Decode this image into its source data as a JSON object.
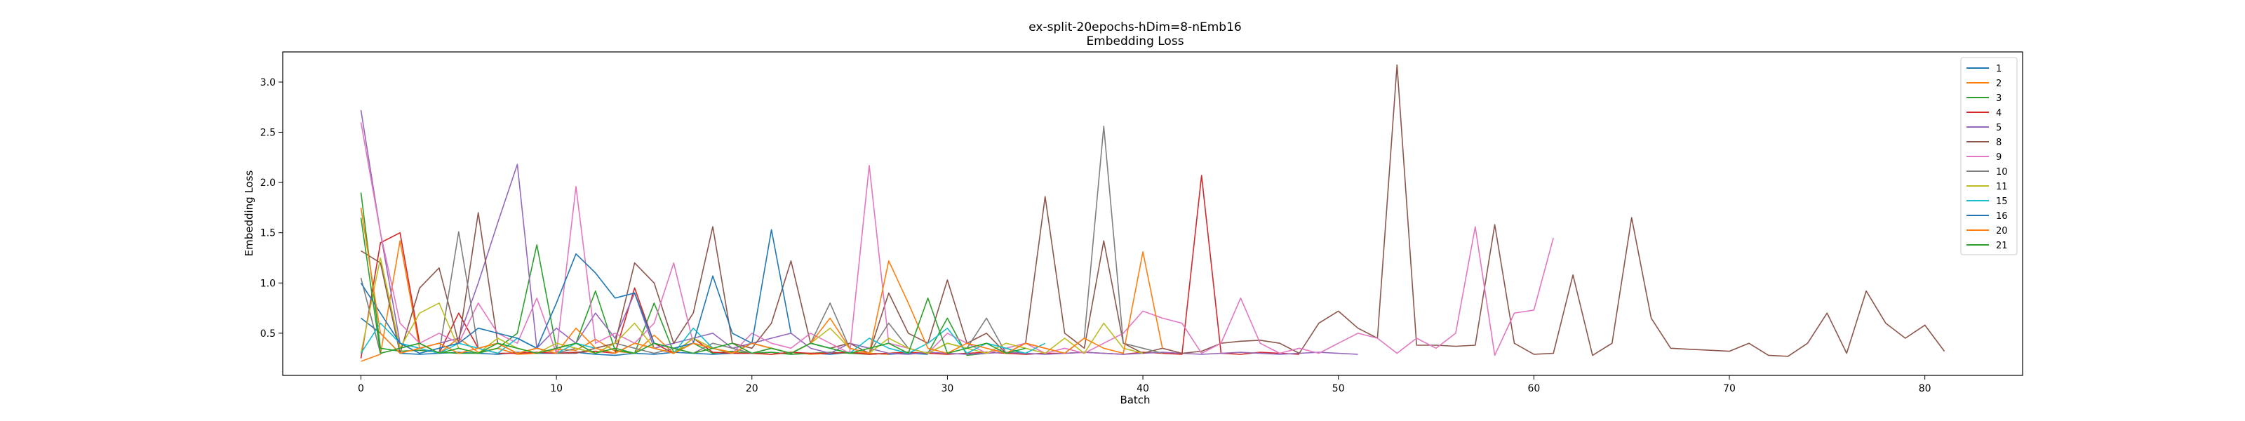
{
  "chart_data": {
    "type": "line",
    "title": "ex-split-20epochs-hDim=8-nEmb16",
    "subtitle": "Embedding Loss",
    "xlabel": "Batch",
    "ylabel": "Embedding Loss",
    "xlim": [
      -4,
      85
    ],
    "ylim": [
      0.08,
      3.3
    ],
    "xticks": [
      0,
      10,
      20,
      30,
      40,
      50,
      60,
      70,
      80
    ],
    "yticks": [
      0.5,
      1.0,
      1.5,
      2.0,
      2.5,
      3.0
    ],
    "ytick_labels": [
      "0.5",
      "1.0",
      "1.5",
      "2.0",
      "2.5",
      "3.0"
    ],
    "grid": false,
    "legend_position": "top-right",
    "series": [
      {
        "name": "1",
        "color": "#1f77b4",
        "values": [
          0.65,
          0.5,
          0.3,
          0.29,
          0.3,
          0.31,
          0.3,
          0.29,
          0.31,
          0.3,
          0.3,
          0.31,
          0.29,
          0.28,
          0.3,
          0.29,
          0.31,
          0.3,
          0.29,
          0.3,
          0.3,
          0.31,
          0.29,
          0.3,
          0.29,
          0.31,
          0.3,
          0.29,
          0.3,
          0.29
        ]
      },
      {
        "name": "2",
        "color": "#ff7f0e",
        "values": [
          0.22,
          0.29,
          1.42,
          0.35,
          0.3,
          0.45,
          0.31,
          0.35,
          0.29,
          0.3,
          0.34,
          0.33,
          0.44,
          0.32,
          0.3,
          0.48,
          0.3,
          0.45,
          0.35,
          0.31,
          0.3,
          0.29,
          0.31,
          0.29,
          0.3,
          0.31,
          0.3,
          0.29
        ]
      },
      {
        "name": "3",
        "color": "#2ca02c",
        "values": [
          1.9,
          0.35,
          0.32,
          0.33,
          0.31,
          0.3,
          0.3,
          0.35,
          0.5,
          1.38,
          0.35,
          0.4,
          0.92,
          0.33,
          0.3,
          0.8,
          0.31,
          0.4,
          0.3,
          0.32,
          0.3,
          0.31,
          0.29,
          0.3,
          0.31,
          0.3,
          0.29,
          0.3,
          0.31,
          0.3,
          0.65,
          0.28,
          0.3,
          0.35,
          0.29,
          0.3
        ]
      },
      {
        "name": "4",
        "color": "#d62728",
        "values": [
          0.25,
          1.4,
          1.5,
          0.4,
          0.3,
          0.7,
          0.35,
          0.3,
          0.3,
          0.31,
          0.3,
          0.31,
          0.32,
          0.3,
          0.95,
          0.4,
          0.3,
          0.45,
          0.31,
          0.3,
          0.3,
          0.29,
          0.31,
          0.3,
          0.3,
          0.31,
          0.29,
          0.3,
          0.31,
          0.3,
          0.29,
          0.3,
          0.31,
          0.3,
          0.29,
          0.3,
          0.3,
          0.31,
          0.3,
          0.29,
          0.31,
          0.3,
          0.29,
          2.07,
          0.3,
          0.29,
          0.31,
          0.3,
          0.29
        ]
      },
      {
        "name": "5",
        "color": "#9467bd",
        "values": [
          2.72,
          1.5,
          0.4,
          0.35,
          0.4,
          0.45,
          1.0,
          1.6,
          2.18,
          0.35,
          0.55,
          0.4,
          0.7,
          0.45,
          0.9,
          0.35,
          0.4,
          0.45,
          0.5,
          0.35,
          0.4,
          0.45,
          0.5,
          0.35,
          0.3,
          0.4,
          0.35,
          0.3,
          0.29,
          0.31,
          0.3,
          0.29,
          0.3,
          0.31,
          0.3,
          0.29,
          0.3,
          0.31,
          0.3,
          0.29,
          0.3,
          0.31,
          0.3,
          0.29,
          0.3,
          0.31,
          0.3,
          0.29,
          0.3,
          0.31,
          0.3,
          0.29
        ]
      },
      {
        "name": "8",
        "color": "#8c564b",
        "values": [
          1.32,
          1.2,
          0.3,
          0.95,
          1.15,
          0.4,
          1.7,
          0.4,
          0.3,
          0.35,
          0.3,
          0.3,
          0.35,
          0.4,
          1.2,
          1.0,
          0.4,
          0.7,
          1.56,
          0.4,
          0.35,
          0.6,
          1.22,
          0.4,
          0.35,
          0.4,
          0.3,
          0.9,
          0.5,
          0.4,
          1.03,
          0.4,
          0.5,
          0.3,
          0.4,
          1.86,
          0.5,
          0.35,
          1.42,
          0.4,
          0.3,
          0.35,
          0.3,
          0.32,
          0.4,
          0.42,
          0.43,
          0.4,
          0.3,
          0.6,
          0.72,
          0.55,
          0.45,
          3.17,
          0.38,
          0.38,
          0.37,
          0.38,
          1.58,
          0.4,
          0.29,
          0.3,
          1.08,
          0.28,
          0.4,
          1.65,
          0.65,
          0.35,
          0.34,
          0.33,
          0.32,
          0.4,
          0.28,
          0.27,
          0.4,
          0.7,
          0.3,
          0.92,
          0.6,
          0.45,
          0.58,
          0.32
        ]
      },
      {
        "name": "9",
        "color": "#e377c2",
        "values": [
          2.6,
          1.5,
          0.6,
          0.4,
          0.5,
          0.4,
          0.8,
          0.5,
          0.4,
          0.85,
          0.3,
          1.96,
          0.4,
          0.5,
          0.4,
          0.6,
          1.2,
          0.4,
          0.35,
          0.3,
          0.5,
          0.4,
          0.35,
          0.5,
          0.4,
          0.3,
          2.17,
          0.4,
          0.35,
          0.3,
          0.5,
          0.4,
          0.3,
          0.35,
          0.4,
          0.3,
          0.35,
          0.3,
          0.4,
          0.5,
          0.72,
          0.65,
          0.6,
          0.3,
          0.4,
          0.85,
          0.4,
          0.3,
          0.35,
          0.3,
          0.4,
          0.5,
          0.45,
          0.3,
          0.45,
          0.35,
          0.5,
          1.56,
          0.28,
          0.7,
          0.73,
          1.45
        ]
      },
      {
        "name": "10",
        "color": "#7f7f7f",
        "values": [
          1.05,
          0.3,
          0.35,
          0.4,
          0.3,
          1.51,
          0.35,
          0.4,
          0.3,
          0.35,
          0.3,
          0.35,
          0.3,
          0.4,
          0.35,
          0.3,
          0.35,
          0.3,
          0.4,
          0.35,
          0.3,
          0.35,
          0.3,
          0.4,
          0.8,
          0.35,
          0.3,
          0.6,
          0.35,
          0.3,
          0.4,
          0.35,
          0.65,
          0.3,
          0.4,
          0.35,
          0.3,
          0.45,
          2.56,
          0.4,
          0.35,
          0.3
        ]
      },
      {
        "name": "11",
        "color": "#bcbd22",
        "values": [
          0.3,
          1.25,
          0.35,
          0.7,
          0.8,
          0.35,
          0.3,
          0.45,
          0.35,
          0.3,
          0.4,
          0.35,
          0.3,
          0.4,
          0.6,
          0.35,
          0.3,
          0.45,
          0.35,
          0.3,
          0.4,
          0.35,
          0.3,
          0.4,
          0.55,
          0.35,
          0.3,
          0.45,
          0.35,
          0.3,
          0.4,
          0.35,
          0.3,
          0.4,
          0.35,
          0.3,
          0.45,
          0.3,
          0.6,
          0.35,
          0.3
        ]
      },
      {
        "name": "15",
        "color": "#17becf",
        "values": [
          0.3,
          0.6,
          0.4,
          0.35,
          0.3,
          0.4,
          0.35,
          0.3,
          0.45,
          0.35,
          0.3,
          0.4,
          0.35,
          0.3,
          0.4,
          0.35,
          0.3,
          0.55,
          0.35,
          0.3,
          0.4,
          0.35,
          0.3,
          0.4,
          0.35,
          0.3,
          0.45,
          0.35,
          0.3,
          0.4,
          0.55,
          0.3,
          0.4,
          0.35,
          0.3,
          0.4
        ]
      },
      {
        "name": "16",
        "color": "#1f77b4",
        "values": [
          1.0,
          0.7,
          0.4,
          0.3,
          0.35,
          0.4,
          0.55,
          0.5,
          0.45,
          0.35,
          0.8,
          1.29,
          1.1,
          0.85,
          0.9,
          0.4,
          0.35,
          0.4,
          1.07,
          0.5,
          0.4,
          1.53,
          0.5
        ]
      },
      {
        "name": "20",
        "color": "#ff7f0e",
        "values": [
          1.75,
          0.5,
          0.3,
          0.35,
          0.4,
          0.3,
          0.35,
          0.4,
          0.3,
          0.35,
          0.3,
          0.55,
          0.35,
          0.3,
          0.4,
          0.35,
          0.3,
          0.4,
          0.35,
          0.3,
          0.4,
          0.35,
          0.3,
          0.4,
          0.65,
          0.35,
          0.3,
          1.22,
          0.8,
          0.35,
          0.3,
          0.4,
          0.35,
          0.3,
          0.4,
          0.35,
          0.3,
          0.45,
          0.35,
          0.3,
          1.31,
          0.35
        ]
      },
      {
        "name": "21",
        "color": "#2ca02c",
        "values": [
          1.65,
          0.3,
          0.35,
          0.4,
          0.3,
          0.35,
          0.3,
          0.4,
          0.35,
          0.3,
          0.35,
          0.4,
          0.3,
          0.35,
          0.3,
          0.4,
          0.35,
          0.3,
          0.35,
          0.4,
          0.3,
          0.35,
          0.3,
          0.4,
          0.35,
          0.3,
          0.35,
          0.4,
          0.3,
          0.85,
          0.3,
          0.35,
          0.4,
          0.3,
          0.35
        ]
      }
    ]
  }
}
